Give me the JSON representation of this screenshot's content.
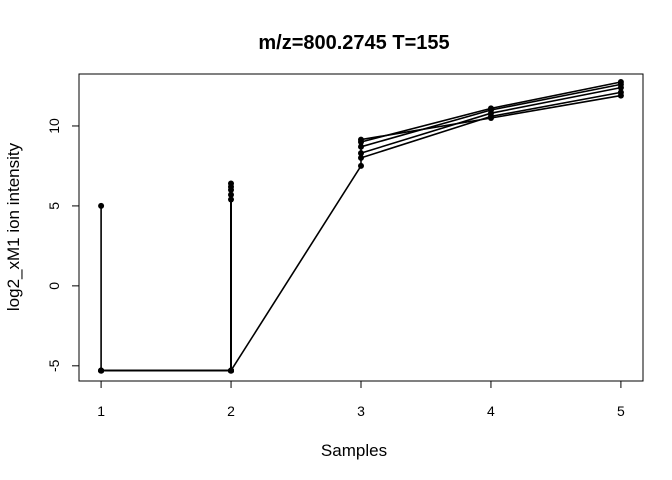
{
  "chart_data": {
    "type": "line",
    "title": "m/z=800.2745 T=155",
    "xlabel": "Samples",
    "ylabel": "log2_xM1 ion intensity",
    "xlim": [
      0.83,
      5.17
    ],
    "ylim": [
      -5.95,
      13.25
    ],
    "x_ticks": [
      "1",
      "2",
      "3",
      "4",
      "5"
    ],
    "y_ticks": [
      "-5",
      "0",
      "5",
      "10"
    ],
    "series": [
      {
        "values": [
          {
            "x": 1,
            "y": 5.0
          },
          {
            "x": 1,
            "y": -5.3
          },
          {
            "x": 2,
            "y": -5.3
          },
          {
            "x": 2,
            "y": 6.4
          }
        ]
      },
      {
        "values": [
          {
            "x": 1,
            "y": -5.3
          },
          {
            "x": 2,
            "y": -5.3
          },
          {
            "x": 2,
            "y": 6.2
          }
        ]
      },
      {
        "values": [
          {
            "x": 1,
            "y": -5.3
          },
          {
            "x": 2,
            "y": -5.3
          },
          {
            "x": 2,
            "y": 6.0
          }
        ]
      },
      {
        "values": [
          {
            "x": 1,
            "y": -5.3
          },
          {
            "x": 2,
            "y": -5.3
          },
          {
            "x": 2,
            "y": 5.7
          }
        ]
      },
      {
        "values": [
          {
            "x": 1,
            "y": -5.3
          },
          {
            "x": 2,
            "y": -5.3
          },
          {
            "x": 2,
            "y": 5.4
          }
        ]
      },
      {
        "values": [
          {
            "x": 2,
            "y": -5.3
          },
          {
            "x": 3,
            "y": 7.5
          },
          {
            "x": 3,
            "y": 9.15
          },
          {
            "x": 4,
            "y": 10.5
          },
          {
            "x": 5,
            "y": 11.9
          }
        ]
      },
      {
        "values": [
          {
            "x": 3,
            "y": 8.0
          },
          {
            "x": 4,
            "y": 10.6
          },
          {
            "x": 5,
            "y": 12.1
          }
        ]
      },
      {
        "values": [
          {
            "x": 3,
            "y": 8.3
          },
          {
            "x": 4,
            "y": 10.8
          },
          {
            "x": 5,
            "y": 12.4
          }
        ]
      },
      {
        "values": [
          {
            "x": 3,
            "y": 8.7
          },
          {
            "x": 4,
            "y": 11.0
          },
          {
            "x": 5,
            "y": 12.6
          }
        ]
      },
      {
        "values": [
          {
            "x": 3,
            "y": 9.0
          },
          {
            "x": 4,
            "y": 11.1
          },
          {
            "x": 5,
            "y": 12.75
          }
        ]
      }
    ]
  }
}
